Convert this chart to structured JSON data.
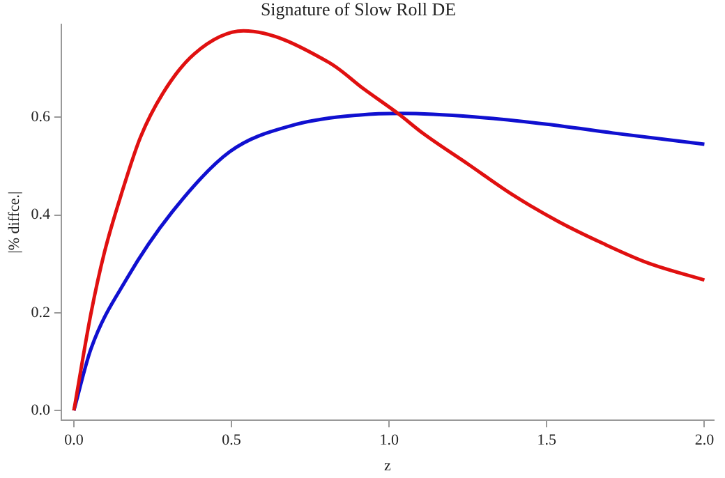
{
  "chart_data": {
    "type": "line",
    "title": "Signature of Slow Roll DE",
    "xlabel": "z",
    "ylabel": "|% diffce.|",
    "xlim": [
      -0.04,
      2.03
    ],
    "ylim": [
      -0.02,
      0.79
    ],
    "xticks": [
      {
        "value": 0,
        "label": "0.0"
      },
      0.5,
      {
        "value": 1,
        "label": "1.0"
      },
      1.5,
      {
        "value": 2,
        "label": "2.0"
      }
    ],
    "yticks": [
      {
        "value": 0,
        "label": "0.0"
      },
      0.2,
      0.4,
      0.6
    ],
    "grid": false,
    "legend": false,
    "marker": "none",
    "line_style": "solid",
    "series": [
      {
        "color": "#e01010",
        "x": [
          0,
          0.054,
          0.097,
          0.154,
          0.211,
          0.282,
          0.382,
          0.538,
          0.81,
          0.92,
          1.03,
          1.108,
          1.251,
          1.393,
          1.536,
          1.678,
          1.821,
          2.0
        ],
        "values": [
          0,
          0.198,
          0.324,
          0.45,
          0.559,
          0.649,
          0.73,
          0.777,
          0.712,
          0.658,
          0.607,
          0.567,
          0.504,
          0.441,
          0.387,
          0.342,
          0.302,
          0.267
        ]
      },
      {
        "color": "#1010d0",
        "x": [
          0,
          0.054,
          0.168,
          0.31,
          0.495,
          0.695,
          0.909,
          1.04,
          1.27,
          1.5,
          1.71,
          2.0
        ],
        "values": [
          0,
          0.126,
          0.27,
          0.405,
          0.53,
          0.584,
          0.605,
          0.608,
          0.601,
          0.586,
          0.568,
          0.545
        ]
      }
    ]
  }
}
